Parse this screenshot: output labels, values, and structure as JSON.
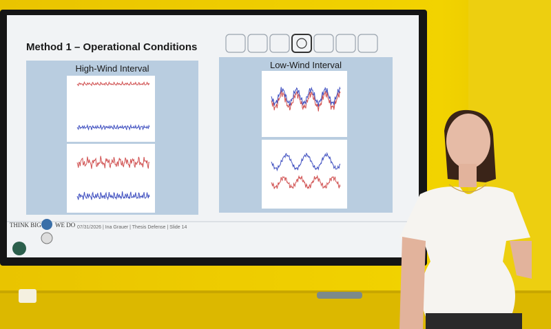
{
  "slide": {
    "title": "Method 1 – Operational Conditions",
    "panels": [
      {
        "title": "High-Wind Interval"
      },
      {
        "title": "Low-Wind Interval"
      }
    ],
    "footer": {
      "logo_left": "THINK BIG",
      "logo_right": "WE DO",
      "text": "07/31/2026 | Ina Grauer | Thesis Defense | Slide 14"
    }
  }
}
